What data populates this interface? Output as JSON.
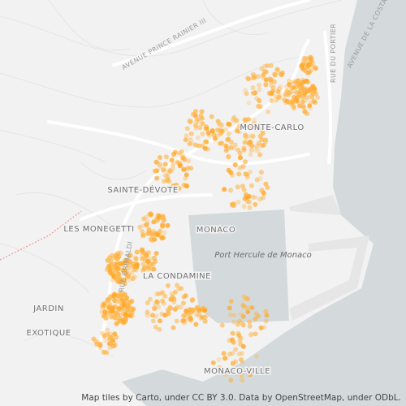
{
  "map": {
    "street_labels": [
      "AVENUE PRINCE RAINIER III",
      "RUE DU PORTIER",
      "AVENUE DE LA COSTA",
      "RUE GRIMALDI"
    ],
    "place_labels": [
      "MONTE-CARLO",
      "SAINTE-DÉVOTE",
      "LES MONEGETTI",
      "MONACO",
      "LA CONDAMINE",
      "JARDIN",
      "EXOTIQUE",
      "MONACO-VILLE"
    ],
    "water_label": "Port Hercule de Monaco"
  },
  "attribution": "Map tiles by Carto, under CC BY 3.0. Data by OpenStreetMap, under ODbL."
}
